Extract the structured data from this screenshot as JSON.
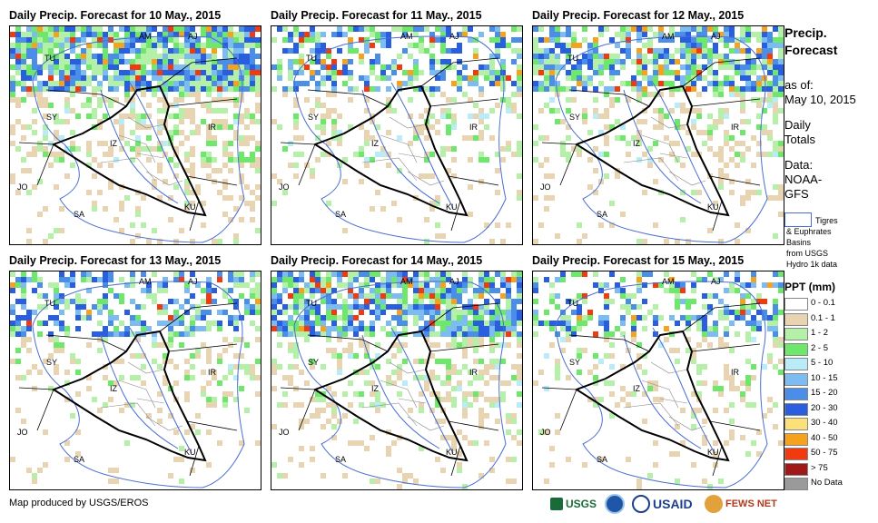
{
  "panels": [
    {
      "title": "Daily Precip. Forecast for 10 May., 2015",
      "intensity": 1.0
    },
    {
      "title": "Daily Precip. Forecast for 11 May., 2015",
      "intensity": 0.55
    },
    {
      "title": "Daily Precip. Forecast for 12 May., 2015",
      "intensity": 0.75
    },
    {
      "title": "Daily Precip. Forecast for 13 May., 2015",
      "intensity": 0.5
    },
    {
      "title": "Daily Precip. Forecast for 14 May., 2015",
      "intensity": 0.85
    },
    {
      "title": "Daily Precip. Forecast for 15 May., 2015",
      "intensity": 0.5
    }
  ],
  "country_labels": {
    "am": "AM",
    "aj": "AJ",
    "tu": "TU",
    "sy": "SY",
    "iz": "IZ",
    "ir": "IR",
    "jo": "JO",
    "sa": "SA",
    "ku": "KU"
  },
  "sidebar": {
    "title_line1": "Precip.",
    "title_line2": "Forecast",
    "asof_line1": "as of:",
    "asof_line2": "May 10, 2015",
    "daily_line1": "Daily",
    "daily_line2": "Totals",
    "data_line1": "Data:",
    "data_line2": "NOAA-",
    "data_line3": "GFS",
    "basin_line1": "Tigres",
    "basin_line2": "& Euphrates",
    "basin_line3": "Basins",
    "basin_line4": "from USGS",
    "basin_line5": "Hydro 1k data",
    "legend_title": "PPT (mm)"
  },
  "legend": [
    {
      "label": "0 - 0.1",
      "color": "#ffffff"
    },
    {
      "label": "0.1 - 1",
      "color": "#e8d4b0"
    },
    {
      "label": "1 - 2",
      "color": "#b4f0a8"
    },
    {
      "label": "2 - 5",
      "color": "#6ee86a"
    },
    {
      "label": "5 - 10",
      "color": "#b8ecf8"
    },
    {
      "label": "10 - 15",
      "color": "#7cbcf0"
    },
    {
      "label": "15 - 20",
      "color": "#4a8ee8"
    },
    {
      "label": "20 - 30",
      "color": "#2a5ee0"
    },
    {
      "label": "30 - 40",
      "color": "#fce07a"
    },
    {
      "label": "40 - 50",
      "color": "#f5a21e"
    },
    {
      "label": "50 - 75",
      "color": "#f23a10"
    },
    {
      "label": "> 75",
      "color": "#a01818"
    },
    {
      "label": "No Data",
      "color": "#9a9a9a"
    }
  ],
  "footer": {
    "credit": "Map produced by USGS/EROS",
    "logo_usgs": "USGS",
    "logo_usaid": "USAID",
    "logo_fews": "FEWS NET"
  }
}
